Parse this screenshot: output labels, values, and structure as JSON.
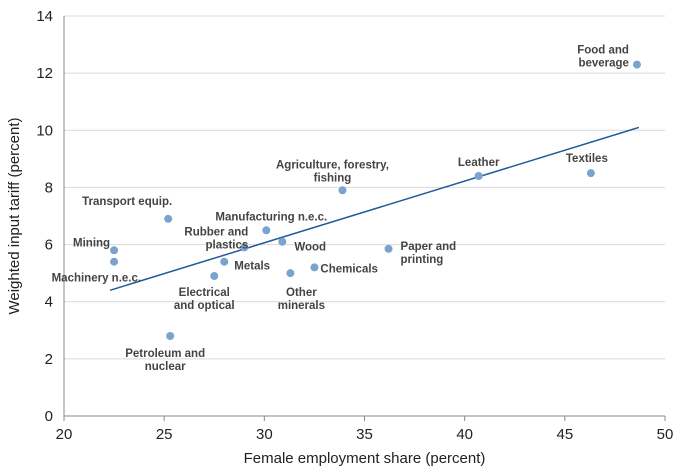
{
  "chart_data": {
    "type": "scatter",
    "title": "",
    "xlabel": "Female employment share (percent)",
    "ylabel": "Weighted input tariff (percent)",
    "xlim": [
      20,
      50
    ],
    "ylim": [
      0,
      14
    ],
    "xticks": [
      20,
      25,
      30,
      35,
      40,
      45,
      50
    ],
    "yticks": [
      0,
      2,
      4,
      6,
      8,
      10,
      12,
      14
    ],
    "grid": "horizontal",
    "points": [
      {
        "label": [
          "Mining"
        ],
        "x": 22.5,
        "y": 5.8
      },
      {
        "label": [
          "Machinery n.e.c."
        ],
        "x": 22.5,
        "y": 5.4
      },
      {
        "label": [
          "Transport equip."
        ],
        "x": 25.2,
        "y": 6.9
      },
      {
        "label": [
          "Petroleum and",
          "nuclear"
        ],
        "x": 25.3,
        "y": 2.8
      },
      {
        "label": [
          "Electrical",
          "and optical"
        ],
        "x": 27.5,
        "y": 4.9
      },
      {
        "label": [
          "Metals"
        ],
        "x": 28.0,
        "y": 5.4
      },
      {
        "label": [
          "Rubber and",
          "plastics"
        ],
        "x": 29.0,
        "y": 5.9
      },
      {
        "label": [
          "Manufacturing n.e.c."
        ],
        "x": 30.1,
        "y": 6.5
      },
      {
        "label": [
          "Wood"
        ],
        "x": 30.9,
        "y": 6.1
      },
      {
        "label": [
          "Other",
          "minerals"
        ],
        "x": 31.3,
        "y": 5.0
      },
      {
        "label": [
          "Chemicals"
        ],
        "x": 32.5,
        "y": 5.2
      },
      {
        "label": [
          "Agriculture, forestry,",
          "fishing"
        ],
        "x": 33.9,
        "y": 7.9
      },
      {
        "label": [
          "Paper and",
          "printing"
        ],
        "x": 36.2,
        "y": 5.85
      },
      {
        "label": [
          "Leather"
        ],
        "x": 40.7,
        "y": 8.4
      },
      {
        "label": [
          "Textiles"
        ],
        "x": 46.3,
        "y": 8.5
      },
      {
        "label": [
          "Food and",
          "beverage"
        ],
        "x": 48.6,
        "y": 12.3
      }
    ],
    "trendline": {
      "x": [
        22.3,
        48.7
      ],
      "y": [
        4.4,
        10.1
      ]
    }
  }
}
